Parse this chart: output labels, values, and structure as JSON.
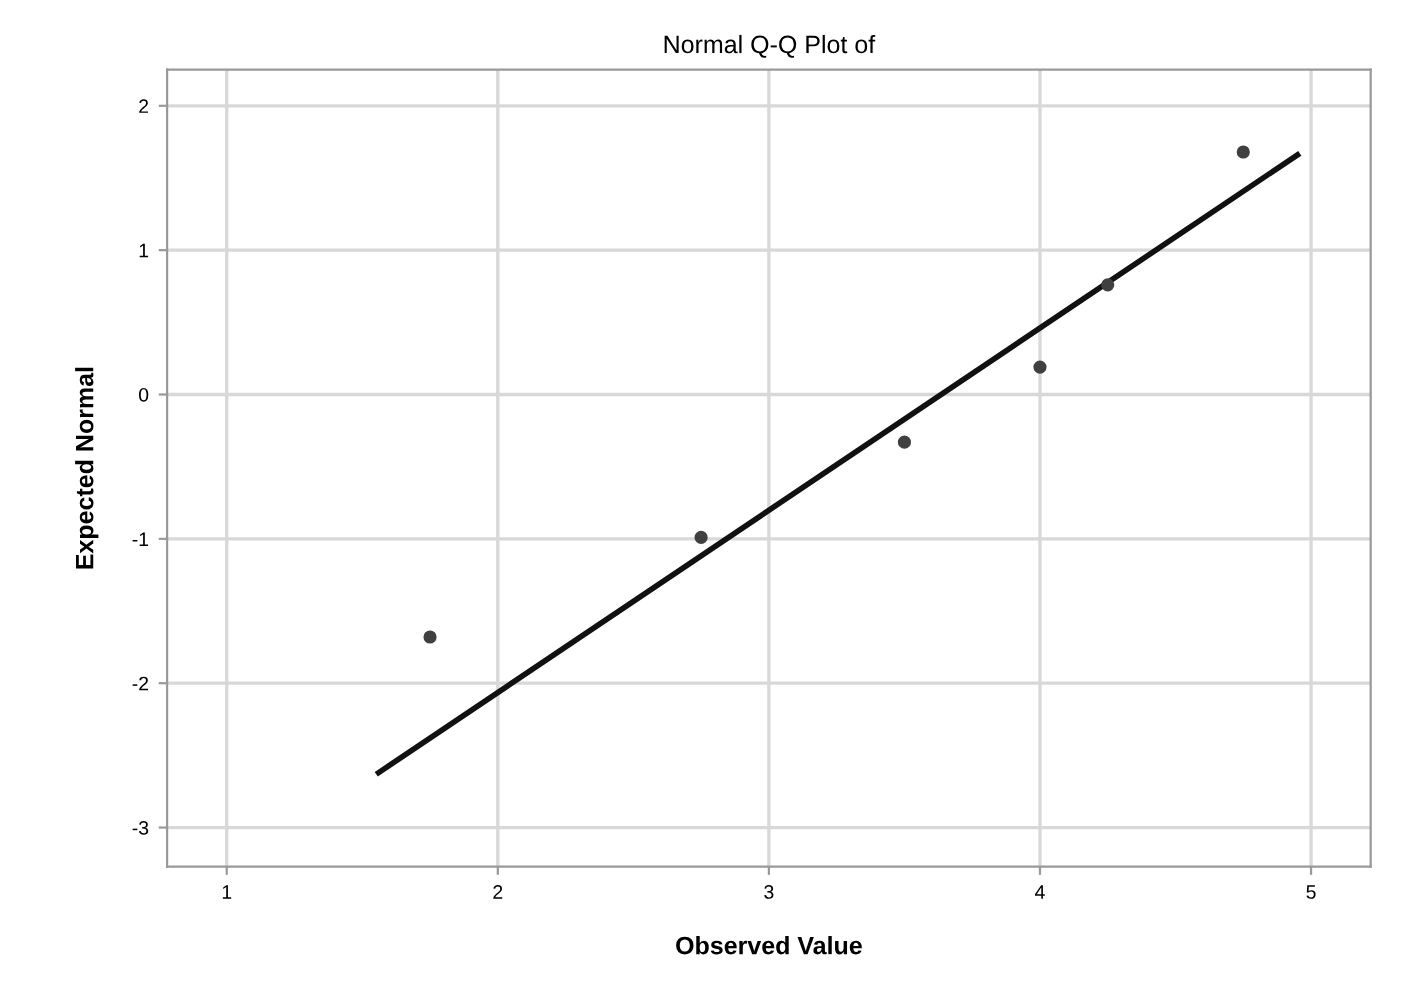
{
  "chart_data": {
    "type": "scatter",
    "title": "Normal Q-Q Plot of",
    "xlabel": "Observed Value",
    "ylabel": "Expected Normal",
    "series": [
      {
        "color": "#404040",
        "marker": "circle",
        "x": [
          1.75,
          2.75,
          3.5,
          4.0,
          4.25,
          4.75
        ],
        "values": [
          -1.68,
          -0.99,
          -0.33,
          0.19,
          0.76,
          1.68
        ]
      },
      {
        "type": "line",
        "color": "#111111",
        "marker": "none",
        "line_style": "solid",
        "x": [
          1.56,
          4.95
        ],
        "values": [
          -2.62,
          1.66
        ]
      }
    ],
    "xlim": [
      0.78,
      5.22
    ],
    "ylim": [
      -3.27,
      2.25
    ],
    "xticks": [
      1,
      2,
      3,
      4,
      5
    ],
    "yticks": [
      -3,
      -2,
      -1,
      0,
      1,
      2
    ],
    "grid": true
  }
}
